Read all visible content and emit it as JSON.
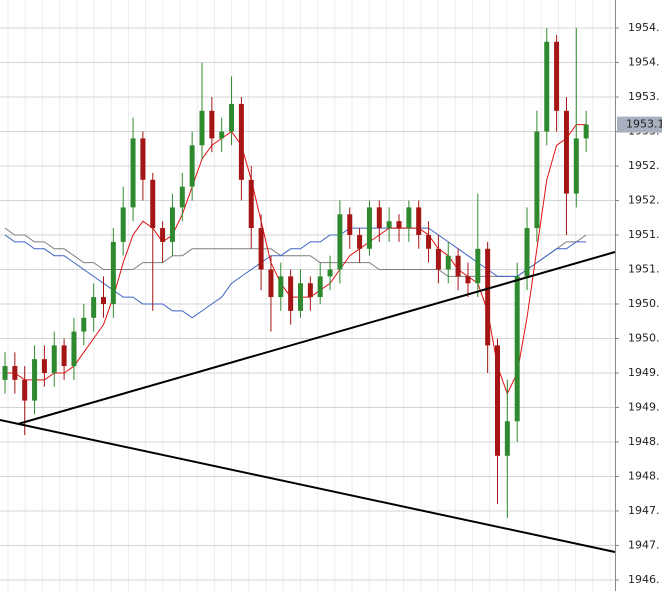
{
  "chart_data": {
    "type": "candlestick",
    "ylim": [
      1946.34,
      1954.906
    ],
    "yticks": [
      {
        "value": 1954.5,
        "label": "1954."
      },
      {
        "value": 1954.0,
        "label": "1954."
      },
      {
        "value": 1953.5,
        "label": "1953."
      },
      {
        "value": 1953.0,
        "label": "1953."
      },
      {
        "value": 1952.5,
        "label": "1952."
      },
      {
        "value": 1952.0,
        "label": "1952."
      },
      {
        "value": 1951.5,
        "label": "1951."
      },
      {
        "value": 1951.0,
        "label": "1951."
      },
      {
        "value": 1950.5,
        "label": "1950."
      },
      {
        "value": 1950.0,
        "label": "1950."
      },
      {
        "value": 1949.5,
        "label": "1949."
      },
      {
        "value": 1949.0,
        "label": "1949."
      },
      {
        "value": 1948.5,
        "label": "1948."
      },
      {
        "value": 1948.0,
        "label": "1948."
      },
      {
        "value": 1947.5,
        "label": "1947."
      },
      {
        "value": 1947.0,
        "label": "1947."
      },
      {
        "value": 1946.5,
        "label": "1946."
      }
    ],
    "grid": true,
    "up_color": "#2f8a2f",
    "down_color": "#a51515",
    "open": [
      1949.4,
      1949.6,
      1949.4,
      1949.1,
      1949.7,
      1949.5,
      1949.9,
      1949.6,
      1950.1,
      1950.3,
      1950.6,
      1950.5,
      1951.4,
      1951.9,
      1952.9,
      1952.3,
      1951.6,
      1951.4,
      1951.9,
      1952.2,
      1952.8,
      1953.3,
      1952.9,
      1953.0,
      1953.4,
      1952.3,
      1951.6,
      1951.0,
      1950.6,
      1950.9,
      1950.4,
      1950.8,
      1950.6,
      1950.9,
      1951.0,
      1951.8,
      1951.5,
      1951.3,
      1951.9,
      1951.6,
      1951.7,
      1951.6,
      1951.9,
      1951.5,
      1951.3,
      1951.0,
      1951.2,
      1950.9,
      1950.8,
      1951.3,
      1949.9,
      1948.3,
      1948.8,
      1950.9,
      1951.6,
      1953.0,
      1954.3,
      1953.3,
      1952.1,
      1952.9
    ],
    "high": [
      1949.8,
      1949.8,
      1949.6,
      1949.9,
      1949.9,
      1950.1,
      1950.0,
      1950.3,
      1950.5,
      1950.8,
      1950.9,
      1951.6,
      1952.2,
      1953.2,
      1953.0,
      1952.4,
      1951.7,
      1952.1,
      1952.4,
      1953.0,
      1954.0,
      1953.5,
      1953.2,
      1953.8,
      1953.5,
      1952.5,
      1951.8,
      1951.2,
      1951.1,
      1951.0,
      1951.0,
      1950.9,
      1951.1,
      1951.2,
      1952.0,
      1951.9,
      1951.6,
      1952.0,
      1952.0,
      1951.9,
      1951.8,
      1952.0,
      1952.0,
      1951.7,
      1951.5,
      1951.4,
      1951.3,
      1951.1,
      1952.1,
      1951.4,
      1950.0,
      1949.4,
      1951.1,
      1951.9,
      1953.3,
      1954.5,
      1954.4,
      1953.5,
      1954.5,
      1953.3
    ],
    "low": [
      1949.2,
      1949.2,
      1948.6,
      1948.9,
      1949.3,
      1949.3,
      1949.4,
      1949.4,
      1949.9,
      1950.1,
      1950.3,
      1950.3,
      1951.2,
      1951.7,
      1952.0,
      1950.4,
      1951.1,
      1951.2,
      1951.7,
      1952.0,
      1952.6,
      1952.7,
      1952.7,
      1952.8,
      1952.0,
      1951.3,
      1950.7,
      1950.1,
      1950.4,
      1950.2,
      1950.3,
      1950.4,
      1950.5,
      1950.7,
      1950.8,
      1951.3,
      1951.1,
      1951.2,
      1951.4,
      1951.4,
      1951.4,
      1951.4,
      1951.3,
      1951.1,
      1950.8,
      1950.8,
      1950.7,
      1950.6,
      1950.6,
      1949.5,
      1947.6,
      1947.4,
      1948.5,
      1950.7,
      1951.4,
      1952.8,
      1953.0,
      1951.5,
      1951.9,
      1952.7
    ],
    "close": [
      1949.6,
      1949.4,
      1949.1,
      1949.7,
      1949.5,
      1949.9,
      1949.6,
      1950.1,
      1950.3,
      1950.6,
      1950.5,
      1951.4,
      1951.9,
      1952.9,
      1952.3,
      1951.6,
      1951.4,
      1951.9,
      1952.2,
      1952.8,
      1953.3,
      1952.9,
      1953.0,
      1953.4,
      1952.3,
      1951.6,
      1951.0,
      1950.6,
      1950.9,
      1950.4,
      1950.8,
      1950.6,
      1950.9,
      1951.0,
      1951.8,
      1951.5,
      1951.3,
      1951.9,
      1951.6,
      1951.7,
      1951.6,
      1951.9,
      1951.5,
      1951.3,
      1951.0,
      1951.2,
      1950.9,
      1950.8,
      1951.3,
      1949.9,
      1948.3,
      1948.8,
      1950.9,
      1951.6,
      1953.0,
      1954.3,
      1953.3,
      1952.1,
      1952.9,
      1953.1
    ],
    "lines": [
      {
        "color": "#7f7f7f",
        "values": [
          1951.6,
          1951.5,
          1951.5,
          1951.4,
          1951.4,
          1951.3,
          1951.3,
          1951.2,
          1951.1,
          1951.1,
          1951.0,
          1951.0,
          1951.0,
          1951.0,
          1951.1,
          1951.1,
          1951.1,
          1951.2,
          1951.2,
          1951.3,
          1951.3,
          1951.3,
          1951.3,
          1951.3,
          1951.3,
          1951.3,
          1951.3,
          1951.3,
          1951.2,
          1951.2,
          1951.2,
          1951.2,
          1951.1,
          1951.1,
          1951.1,
          1951.1,
          1951.1,
          1951.1,
          1951.0,
          1951.0,
          1951.0,
          1951.0,
          1951.0,
          1951.0,
          1951.0,
          1950.9,
          1950.9,
          1950.9,
          1950.9,
          1950.9,
          1950.9,
          1950.9,
          1950.9,
          1951.0,
          1951.1,
          1951.2,
          1951.3,
          1951.4,
          1951.4,
          1951.5
        ]
      },
      {
        "color": "#3f63c4",
        "values": [
          1951.5,
          1951.4,
          1951.4,
          1951.3,
          1951.3,
          1951.2,
          1951.2,
          1951.1,
          1951.0,
          1950.9,
          1950.8,
          1950.7,
          1950.6,
          1950.6,
          1950.5,
          1950.5,
          1950.5,
          1950.4,
          1950.4,
          1950.3,
          1950.4,
          1950.5,
          1950.6,
          1950.8,
          1950.9,
          1951.0,
          1951.1,
          1951.2,
          1951.2,
          1951.3,
          1951.3,
          1951.4,
          1951.4,
          1951.5,
          1951.5,
          1951.6,
          1951.6,
          1951.6,
          1951.6,
          1951.6,
          1951.6,
          1951.6,
          1951.6,
          1951.6,
          1951.5,
          1951.4,
          1951.3,
          1951.2,
          1951.1,
          1951.0,
          1950.9,
          1950.9,
          1950.9,
          1951.0,
          1951.1,
          1951.2,
          1951.3,
          1951.3,
          1951.4,
          1951.4
        ]
      },
      {
        "color": "#e01010",
        "values": [
          1949.5,
          1949.5,
          1949.4,
          1949.4,
          1949.4,
          1949.5,
          1949.5,
          1949.6,
          1949.8,
          1950.0,
          1950.2,
          1950.6,
          1951.1,
          1951.5,
          1951.7,
          1951.6,
          1951.4,
          1951.5,
          1951.8,
          1952.2,
          1952.6,
          1952.8,
          1952.9,
          1953.0,
          1952.8,
          1952.3,
          1951.7,
          1951.1,
          1950.8,
          1950.6,
          1950.6,
          1950.6,
          1950.7,
          1950.8,
          1951.0,
          1951.2,
          1951.3,
          1951.4,
          1951.5,
          1951.6,
          1951.6,
          1951.6,
          1951.6,
          1951.5,
          1951.3,
          1951.2,
          1951.0,
          1950.9,
          1950.8,
          1950.4,
          1949.6,
          1949.2,
          1949.5,
          1950.3,
          1951.3,
          1952.3,
          1952.8,
          1952.9,
          1953.1,
          1953.1
        ]
      }
    ],
    "last_price": {
      "value": 1953.1,
      "label": "1953.1"
    }
  }
}
